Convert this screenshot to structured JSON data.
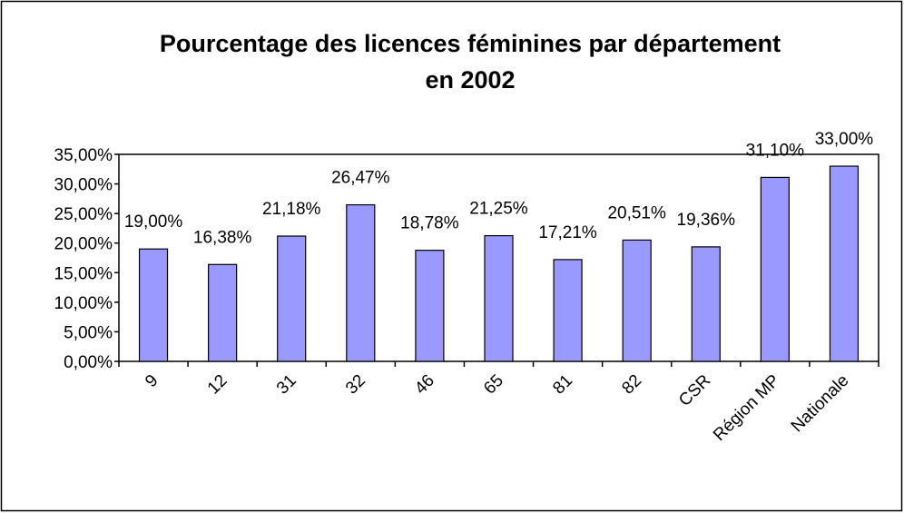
{
  "chart_data": {
    "type": "bar",
    "title": [
      "Pourcentage des licences féminines par département",
      "en 2002"
    ],
    "categories": [
      "9",
      "12",
      "31",
      "32",
      "46",
      "65",
      "81",
      "82",
      "CSR",
      "Région MP",
      "Nationale"
    ],
    "values": [
      19.0,
      16.38,
      21.18,
      26.47,
      18.78,
      21.25,
      17.21,
      20.51,
      19.36,
      31.1,
      33.0
    ],
    "value_labels": [
      "19,00%",
      "16,38%",
      "21,18%",
      "26,47%",
      "18,78%",
      "21,25%",
      "17,21%",
      "20,51%",
      "19,36%",
      "31,10%",
      "33,00%"
    ],
    "color": "#9999ff",
    "ylim": [
      0,
      35
    ],
    "yticks": [
      {
        "value": 0,
        "label": "0,00%"
      },
      {
        "value": 5,
        "label": "5,00%"
      },
      {
        "value": 10,
        "label": "10,00%"
      },
      {
        "value": 15,
        "label": "15,00%"
      },
      {
        "value": 20,
        "label": "20,00%"
      },
      {
        "value": 25,
        "label": "25,00%"
      },
      {
        "value": 30,
        "label": "30,00%"
      },
      {
        "value": 35,
        "label": "35,00%"
      }
    ],
    "grid": false
  }
}
